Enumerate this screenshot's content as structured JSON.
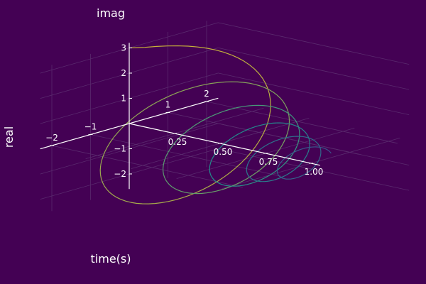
{
  "chart_data": {
    "type": "line",
    "projection": "3d",
    "title": "",
    "xlabel": "time(s)",
    "ylabel": "real",
    "zlabel": "imag",
    "xlim": [
      0,
      1.05
    ],
    "ylim": [
      -2.3,
      2.3
    ],
    "zlim": [
      -2.6,
      3.2
    ],
    "x_ticks": [
      "0.25",
      "0.50",
      "0.75",
      "1.00"
    ],
    "y_ticks": [
      "−2",
      "−1",
      "1",
      "2"
    ],
    "z_ticks": [
      "−2",
      "−1",
      "1",
      "2",
      "3"
    ],
    "grid": true,
    "legend": "none",
    "colors": {
      "background": "#440154",
      "axis": "#ffffff",
      "grid": "#5a2a6e",
      "gradient_start": "#3b528b",
      "gradient_mid": "#21918c",
      "gradient_end": "#c8b13a"
    }
  }
}
